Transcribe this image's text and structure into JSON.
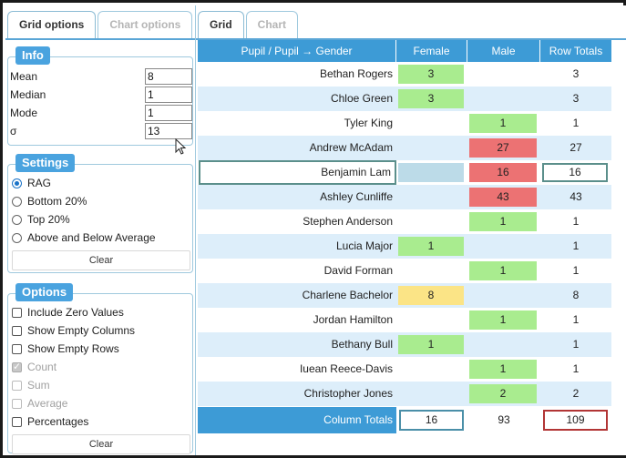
{
  "left_tabs": [
    {
      "label": "Grid options",
      "active": true
    },
    {
      "label": "Chart options",
      "active": false
    }
  ],
  "right_tabs": [
    {
      "label": "Grid",
      "active": true
    },
    {
      "label": "Chart",
      "active": false
    }
  ],
  "info": {
    "title": "Info",
    "rows": [
      {
        "label": "Mean",
        "value": "8"
      },
      {
        "label": "Median",
        "value": "1"
      },
      {
        "label": "Mode",
        "value": "1"
      },
      {
        "label": "σ",
        "value": "13"
      }
    ]
  },
  "settings": {
    "title": "Settings",
    "options": [
      {
        "label": "RAG",
        "selected": true
      },
      {
        "label": "Bottom 20%",
        "selected": false
      },
      {
        "label": "Top 20%",
        "selected": false
      },
      {
        "label": "Above and Below Average",
        "selected": false
      }
    ],
    "clear_label": "Clear"
  },
  "options": {
    "title": "Options",
    "items": [
      {
        "label": "Include Zero Values",
        "checked": false,
        "disabled": false
      },
      {
        "label": "Show Empty Columns",
        "checked": false,
        "disabled": false
      },
      {
        "label": "Show Empty Rows",
        "checked": false,
        "disabled": false
      },
      {
        "label": "Count",
        "checked": true,
        "disabled": true
      },
      {
        "label": "Sum",
        "checked": false,
        "disabled": true
      },
      {
        "label": "Average",
        "checked": false,
        "disabled": true
      },
      {
        "label": "Percentages",
        "checked": false,
        "disabled": false
      }
    ],
    "clear_label": "Clear"
  },
  "grid": {
    "headers": [
      "Pupil / Pupil → Gender",
      "Female",
      "Male",
      "Row Totals"
    ],
    "colors": {
      "green": "#a9ec8f",
      "red": "#ec7273",
      "amber": "#fbe486",
      "header": "#3d9bd6"
    },
    "rows": [
      {
        "name": "Bethan Rogers",
        "female": "3",
        "female_rag": "green",
        "male": "",
        "male_rag": "",
        "total": "3"
      },
      {
        "name": "Chloe Green",
        "female": "3",
        "female_rag": "green",
        "male": "",
        "male_rag": "",
        "total": "3"
      },
      {
        "name": "Tyler King",
        "female": "",
        "female_rag": "",
        "male": "1",
        "male_rag": "green",
        "total": "1"
      },
      {
        "name": "Andrew McAdam",
        "female": "",
        "female_rag": "",
        "male": "27",
        "male_rag": "red",
        "total": "27"
      },
      {
        "name": "Benjamin Lam",
        "female": "",
        "female_rag": "",
        "male": "16",
        "male_rag": "red",
        "total": "16",
        "selected": true
      },
      {
        "name": "Ashley Cunliffe",
        "female": "",
        "female_rag": "",
        "male": "43",
        "male_rag": "red",
        "total": "43"
      },
      {
        "name": "Stephen Anderson",
        "female": "",
        "female_rag": "",
        "male": "1",
        "male_rag": "green",
        "total": "1"
      },
      {
        "name": "Lucia Major",
        "female": "1",
        "female_rag": "green",
        "male": "",
        "male_rag": "",
        "total": "1"
      },
      {
        "name": "David Forman",
        "female": "",
        "female_rag": "",
        "male": "1",
        "male_rag": "green",
        "total": "1"
      },
      {
        "name": "Charlene Bachelor",
        "female": "8",
        "female_rag": "amber",
        "male": "",
        "male_rag": "",
        "total": "8"
      },
      {
        "name": "Jordan Hamilton",
        "female": "",
        "female_rag": "",
        "male": "1",
        "male_rag": "green",
        "total": "1"
      },
      {
        "name": "Bethany Bull",
        "female": "1",
        "female_rag": "green",
        "male": "",
        "male_rag": "",
        "total": "1"
      },
      {
        "name": "Iuean Reece-Davis",
        "female": "",
        "female_rag": "",
        "male": "1",
        "male_rag": "green",
        "total": "1"
      },
      {
        "name": "Christopher Jones",
        "female": "",
        "female_rag": "",
        "male": "2",
        "male_rag": "green",
        "total": "2"
      }
    ],
    "footer": {
      "label": "Column Totals",
      "female": "16",
      "male": "93",
      "total": "109"
    }
  }
}
